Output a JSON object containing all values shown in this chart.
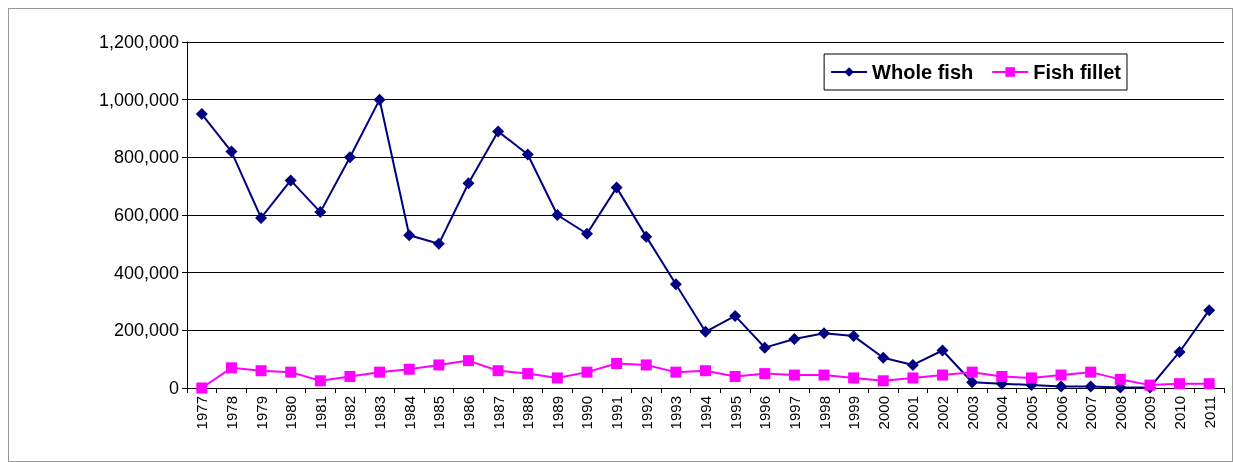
{
  "chart_data": {
    "type": "line",
    "categories": [
      "1977",
      "1978",
      "1979",
      "1980",
      "1981",
      "1982",
      "1983",
      "1984",
      "1985",
      "1986",
      "1987",
      "1988",
      "1989",
      "1990",
      "1991",
      "1992",
      "1993",
      "1994",
      "1995",
      "1996",
      "1997",
      "1998",
      "1999",
      "2000",
      "2001",
      "2002",
      "2003",
      "2004",
      "2005",
      "2006",
      "2007",
      "2008",
      "2009",
      "2010",
      "2011"
    ],
    "series": [
      {
        "name": "Whole fish",
        "color": "#000080",
        "marker": "diamond",
        "values": [
          950000,
          820000,
          590000,
          720000,
          610000,
          800000,
          1000000,
          530000,
          500000,
          710000,
          890000,
          810000,
          600000,
          535000,
          695000,
          525000,
          360000,
          195000,
          250000,
          140000,
          170000,
          190000,
          180000,
          105000,
          80000,
          130000,
          20000,
          15000,
          10000,
          5000,
          5000,
          2000,
          2000,
          125000,
          270000
        ]
      },
      {
        "name": "Fish fillet",
        "color": "#ff00ff",
        "marker": "square",
        "values": [
          0,
          70000,
          60000,
          55000,
          25000,
          40000,
          55000,
          65000,
          80000,
          95000,
          60000,
          50000,
          35000,
          55000,
          85000,
          80000,
          55000,
          60000,
          40000,
          50000,
          45000,
          45000,
          35000,
          25000,
          35000,
          45000,
          55000,
          40000,
          35000,
          45000,
          55000,
          30000,
          10000,
          15000,
          15000
        ]
      }
    ],
    "ylim": [
      0,
      1200000
    ],
    "yticks": [
      0,
      {
        "value": 200000,
        "label": "200,000"
      },
      {
        "value": 400000,
        "label": "400,000"
      },
      {
        "value": 600000,
        "label": "600,000"
      },
      {
        "value": 800000,
        "label": "800,000"
      },
      {
        "value": 1000000,
        "label": "1,000,000"
      },
      {
        "value": 1200000,
        "label": "1,200,000"
      }
    ],
    "grid": "y",
    "legend": "top right",
    "line_style": "solid"
  }
}
